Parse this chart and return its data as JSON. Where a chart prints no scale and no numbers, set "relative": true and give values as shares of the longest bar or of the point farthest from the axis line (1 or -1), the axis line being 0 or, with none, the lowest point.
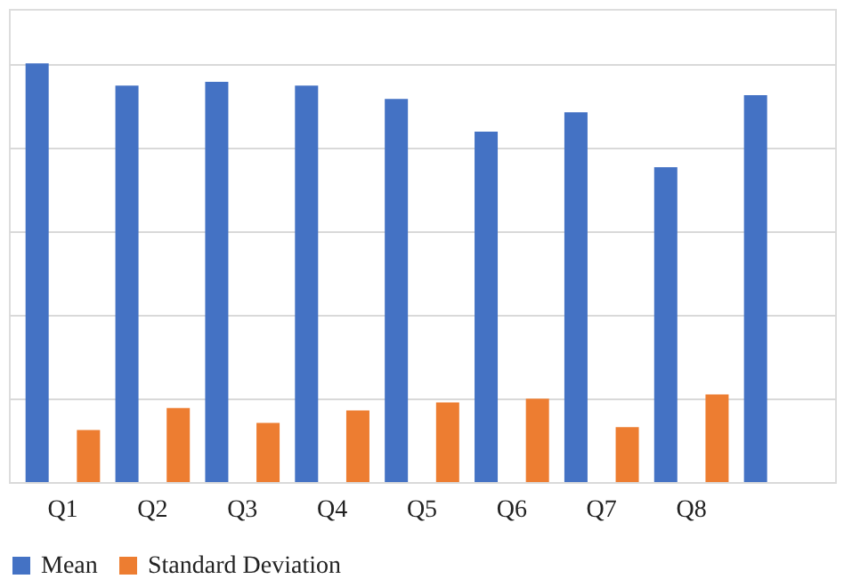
{
  "chart_data": {
    "type": "bar",
    "relative": true,
    "categories": [
      "Q1",
      "Q2",
      "Q3",
      "Q4",
      "Q5",
      "Q6",
      "Q7",
      "Q8",
      null
    ],
    "series": [
      {
        "name": "Mean",
        "color": "#4472c4",
        "values": [
          1,
          0.947,
          0.956,
          0.947,
          0.915,
          0.837,
          0.883,
          0.752,
          0.924
        ]
      },
      {
        "name": "Standard Deviation",
        "color": "#ed7d31",
        "values": [
          0.124,
          0.177,
          0.141,
          0.171,
          0.19,
          0.199,
          0.131,
          0.209,
          null
        ]
      }
    ],
    "grid": "y",
    "legend": "bottom"
  }
}
